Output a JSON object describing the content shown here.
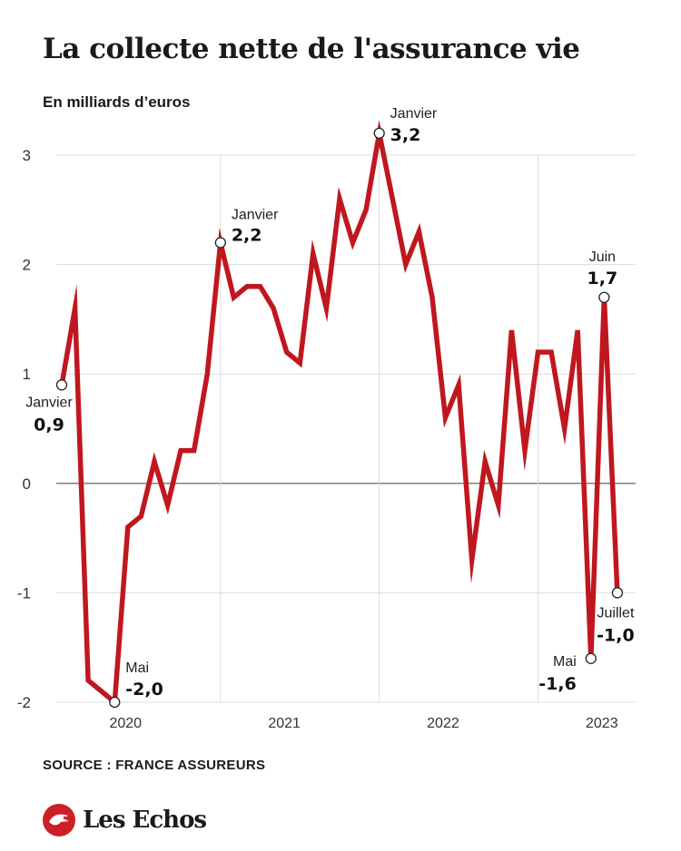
{
  "header": {
    "title": "La collecte nette de l'assurance vie",
    "subtitle": "En milliards d’euros"
  },
  "footer": {
    "source": "SOURCE : FRANCE ASSUREURS",
    "brand": "Les Echos"
  },
  "colors": {
    "line": "#c0171f",
    "grid": "#dcdcdc",
    "zero_line": "#555555",
    "brand_red": "#cc1f26"
  },
  "chart_data": {
    "type": "line",
    "title": "La collecte nette de l'assurance vie",
    "subtitle": "En milliards d’euros",
    "xlabel": "",
    "ylabel": "",
    "ylim": [
      -2,
      3
    ],
    "yticks": [
      3,
      2,
      1,
      0,
      -1,
      -2
    ],
    "ytick_labels": [
      "3",
      "2",
      "1",
      "0",
      "-1",
      "-2"
    ],
    "x_start": "2019-01",
    "xticks": [
      {
        "label": "2020",
        "index": 4
      },
      {
        "label": "2021",
        "index": 16
      },
      {
        "label": "2022",
        "index": 28
      },
      {
        "label": "2023",
        "index": 40
      }
    ],
    "year_separators_index": [
      12,
      24,
      36
    ],
    "grid": true,
    "series": [
      {
        "values": [
          0.9,
          1.6,
          -1.8,
          -1.9,
          -2.0,
          -0.4,
          -0.3,
          0.2,
          -0.2,
          0.3,
          0.3,
          1.0,
          2.2,
          1.7,
          1.8,
          1.8,
          1.6,
          1.2,
          1.1,
          2.1,
          1.6,
          2.6,
          2.2,
          2.5,
          3.2,
          2.6,
          2.0,
          2.3,
          1.7,
          0.6,
          0.9,
          -0.7,
          0.2,
          -0.2,
          1.4,
          0.3,
          1.2,
          1.2,
          0.5,
          1.4,
          -1.6,
          1.7,
          -1.0
        ]
      }
    ],
    "annotations": [
      {
        "index": 0,
        "month": "Janvier",
        "value": "0,9"
      },
      {
        "index": 4,
        "month": "Mai",
        "value": "-2,0"
      },
      {
        "index": 12,
        "month": "Janvier",
        "value": "2,2"
      },
      {
        "index": 24,
        "month": "Janvier",
        "value": "3,2"
      },
      {
        "index": 40,
        "month": "Mai",
        "value": "-1,6"
      },
      {
        "index": 41,
        "month": "Juin",
        "value": "1,7"
      },
      {
        "index": 42,
        "month": "Juillet",
        "value": "-1,0"
      }
    ]
  }
}
